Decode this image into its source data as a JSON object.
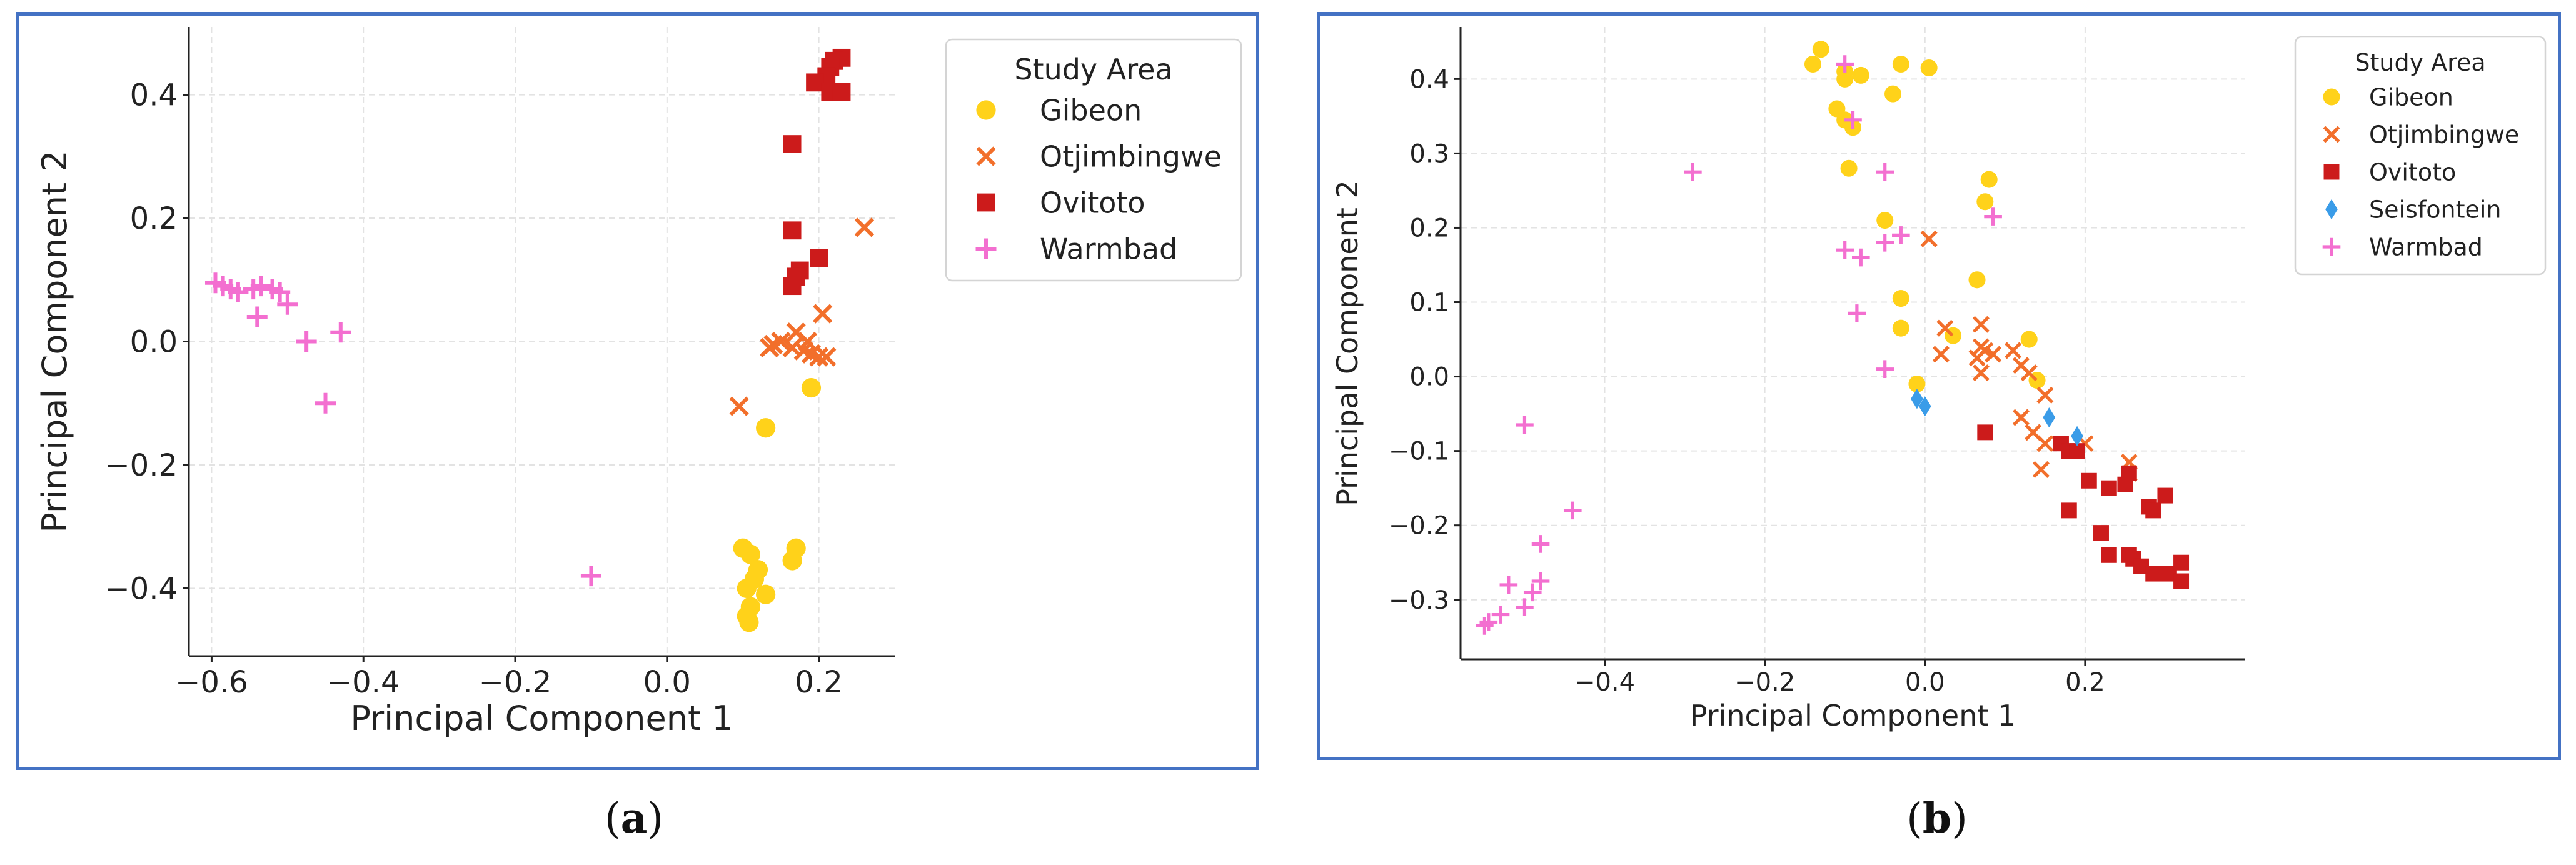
{
  "captions": {
    "a_letter": "a",
    "b_letter": "b"
  },
  "colors": {
    "Gibeon": "#ffd21a",
    "Otjimbingwe": "#f26f2b",
    "Ovitoto": "#cc1b1b",
    "Seisfontein": "#3a9ce8",
    "Warmbad": "#f36fd0",
    "grid": "#e3e3e3",
    "frame": "#4472c4"
  },
  "chart_data": [
    {
      "id": "a",
      "type": "scatter",
      "xlabel": "Principal Component 1",
      "ylabel": "Principal Component 2",
      "xlim": [
        -0.63,
        0.3
      ],
      "ylim": [
        -0.51,
        0.51
      ],
      "xticks": [
        -0.6,
        -0.4,
        -0.2,
        0.0,
        0.2
      ],
      "xtick_labels": [
        "−0.6",
        "−0.4",
        "−0.2",
        "0.0",
        "0.2"
      ],
      "yticks": [
        -0.4,
        -0.2,
        0.0,
        0.2,
        0.4
      ],
      "ytick_labels": [
        "−0.4",
        "−0.2",
        "0.0",
        "0.2",
        "0.4"
      ],
      "grid": true,
      "legend": {
        "title": "Study Area",
        "placement": "top-right"
      },
      "series": [
        {
          "name": "Gibeon",
          "marker": "circle",
          "points": [
            [
              0.13,
              -0.14
            ],
            [
              0.19,
              -0.075
            ],
            [
              0.1,
              -0.335
            ],
            [
              0.11,
              -0.345
            ],
            [
              0.17,
              -0.335
            ],
            [
              0.165,
              -0.355
            ],
            [
              0.12,
              -0.37
            ],
            [
              0.115,
              -0.385
            ],
            [
              0.105,
              -0.4
            ],
            [
              0.13,
              -0.41
            ],
            [
              0.11,
              -0.43
            ],
            [
              0.105,
              -0.445
            ],
            [
              0.108,
              -0.455
            ]
          ]
        },
        {
          "name": "Otjimbingwe",
          "marker": "x",
          "points": [
            [
              0.26,
              0.185
            ],
            [
              0.205,
              0.045
            ],
            [
              0.17,
              0.015
            ],
            [
              0.185,
              0.0
            ],
            [
              0.14,
              -0.005
            ],
            [
              0.15,
              0.0
            ],
            [
              0.165,
              -0.01
            ],
            [
              0.18,
              -0.015
            ],
            [
              0.19,
              -0.02
            ],
            [
              0.2,
              -0.025
            ],
            [
              0.21,
              -0.025
            ],
            [
              0.135,
              -0.01
            ],
            [
              0.095,
              -0.105
            ]
          ]
        },
        {
          "name": "Ovitoto",
          "marker": "square",
          "points": [
            [
              0.23,
              0.46
            ],
            [
              0.22,
              0.455
            ],
            [
              0.215,
              0.445
            ],
            [
              0.21,
              0.43
            ],
            [
              0.195,
              0.42
            ],
            [
              0.215,
              0.405
            ],
            [
              0.23,
              0.405
            ],
            [
              0.165,
              0.32
            ],
            [
              0.165,
              0.18
            ],
            [
              0.2,
              0.135
            ],
            [
              0.175,
              0.115
            ],
            [
              0.17,
              0.105
            ],
            [
              0.165,
              0.09
            ]
          ]
        },
        {
          "name": "Warmbad",
          "marker": "plus",
          "points": [
            [
              -0.595,
              0.095
            ],
            [
              -0.585,
              0.09
            ],
            [
              -0.575,
              0.085
            ],
            [
              -0.565,
              0.08
            ],
            [
              -0.545,
              0.085
            ],
            [
              -0.535,
              0.09
            ],
            [
              -0.52,
              0.085
            ],
            [
              -0.51,
              0.08
            ],
            [
              -0.5,
              0.06
            ],
            [
              -0.54,
              0.04
            ],
            [
              -0.475,
              0.0
            ],
            [
              -0.43,
              0.015
            ],
            [
              -0.45,
              -0.1
            ],
            [
              -0.1,
              -0.38
            ]
          ]
        }
      ]
    },
    {
      "id": "b",
      "type": "scatter",
      "xlabel": "Principal Component 1",
      "ylabel": "Principal Component 2",
      "xlim": [
        -0.58,
        0.4
      ],
      "ylim": [
        -0.38,
        0.47
      ],
      "xticks": [
        -0.4,
        -0.2,
        0.0,
        0.2
      ],
      "xtick_labels": [
        "−0.4",
        "−0.2",
        "0.0",
        "0.2"
      ],
      "yticks": [
        -0.3,
        -0.2,
        -0.1,
        0.0,
        0.1,
        0.2,
        0.3,
        0.4
      ],
      "ytick_labels": [
        "−0.3",
        "−0.2",
        "−0.1",
        "0.0",
        "0.1",
        "0.2",
        "0.3",
        "0.4"
      ],
      "grid": true,
      "legend": {
        "title": "Study Area",
        "placement": "top-right"
      },
      "series": [
        {
          "name": "Gibeon",
          "marker": "circle",
          "points": [
            [
              -0.13,
              0.44
            ],
            [
              -0.14,
              0.42
            ],
            [
              -0.1,
              0.41
            ],
            [
              -0.1,
              0.4
            ],
            [
              -0.08,
              0.405
            ],
            [
              -0.03,
              0.42
            ],
            [
              0.005,
              0.415
            ],
            [
              -0.04,
              0.38
            ],
            [
              -0.11,
              0.36
            ],
            [
              -0.1,
              0.345
            ],
            [
              -0.09,
              0.335
            ],
            [
              -0.095,
              0.28
            ],
            [
              0.08,
              0.265
            ],
            [
              0.075,
              0.235
            ],
            [
              -0.05,
              0.21
            ],
            [
              0.065,
              0.13
            ],
            [
              -0.03,
              0.105
            ],
            [
              -0.03,
              0.065
            ],
            [
              0.13,
              0.05
            ],
            [
              0.035,
              0.055
            ],
            [
              -0.01,
              -0.01
            ],
            [
              0.14,
              -0.005
            ]
          ]
        },
        {
          "name": "Otjimbingwe",
          "marker": "x",
          "points": [
            [
              0.005,
              0.185
            ],
            [
              0.025,
              0.065
            ],
            [
              0.07,
              0.07
            ],
            [
              0.02,
              0.03
            ],
            [
              0.07,
              0.04
            ],
            [
              0.075,
              0.035
            ],
            [
              0.085,
              0.03
            ],
            [
              0.065,
              0.025
            ],
            [
              0.11,
              0.035
            ],
            [
              0.12,
              0.015
            ],
            [
              0.13,
              0.005
            ],
            [
              0.07,
              0.005
            ],
            [
              0.15,
              -0.025
            ],
            [
              0.12,
              -0.055
            ],
            [
              0.135,
              -0.075
            ],
            [
              0.15,
              -0.09
            ],
            [
              0.2,
              -0.09
            ],
            [
              0.145,
              -0.125
            ],
            [
              0.255,
              -0.115
            ],
            [
              0.255,
              -0.13
            ]
          ]
        },
        {
          "name": "Ovitoto",
          "marker": "square",
          "points": [
            [
              0.075,
              -0.075
            ],
            [
              0.17,
              -0.09
            ],
            [
              0.18,
              -0.1
            ],
            [
              0.19,
              -0.1
            ],
            [
              0.205,
              -0.14
            ],
            [
              0.18,
              -0.18
            ],
            [
              0.23,
              -0.15
            ],
            [
              0.25,
              -0.145
            ],
            [
              0.255,
              -0.13
            ],
            [
              0.3,
              -0.16
            ],
            [
              0.28,
              -0.175
            ],
            [
              0.285,
              -0.18
            ],
            [
              0.22,
              -0.21
            ],
            [
              0.23,
              -0.24
            ],
            [
              0.255,
              -0.24
            ],
            [
              0.26,
              -0.245
            ],
            [
              0.27,
              -0.255
            ],
            [
              0.285,
              -0.265
            ],
            [
              0.305,
              -0.265
            ],
            [
              0.32,
              -0.25
            ],
            [
              0.32,
              -0.275
            ]
          ]
        },
        {
          "name": "Seisfontein",
          "marker": "diamond",
          "points": [
            [
              -0.01,
              -0.03
            ],
            [
              0.0,
              -0.04
            ],
            [
              0.155,
              -0.055
            ],
            [
              0.19,
              -0.08
            ]
          ]
        },
        {
          "name": "Warmbad",
          "marker": "plus",
          "points": [
            [
              -0.1,
              0.42
            ],
            [
              -0.09,
              0.345
            ],
            [
              -0.29,
              0.275
            ],
            [
              -0.05,
              0.275
            ],
            [
              0.085,
              0.215
            ],
            [
              -0.03,
              0.19
            ],
            [
              -0.05,
              0.18
            ],
            [
              -0.1,
              0.17
            ],
            [
              -0.08,
              0.16
            ],
            [
              -0.085,
              0.085
            ],
            [
              -0.05,
              0.01
            ],
            [
              -0.5,
              -0.065
            ],
            [
              -0.44,
              -0.18
            ],
            [
              -0.48,
              -0.225
            ],
            [
              -0.48,
              -0.275
            ],
            [
              -0.52,
              -0.28
            ],
            [
              -0.49,
              -0.29
            ],
            [
              -0.5,
              -0.31
            ],
            [
              -0.53,
              -0.32
            ],
            [
              -0.545,
              -0.33
            ],
            [
              -0.55,
              -0.335
            ]
          ]
        }
      ]
    }
  ]
}
